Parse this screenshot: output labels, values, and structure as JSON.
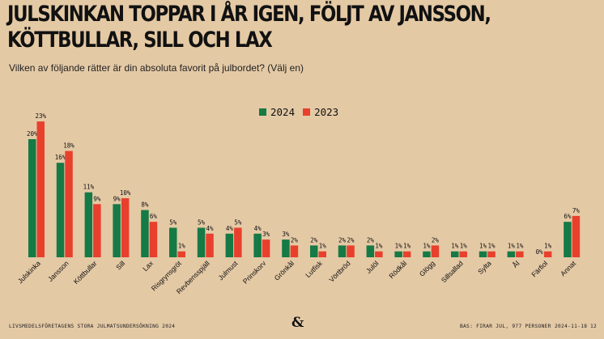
{
  "header": {
    "title_line1": "JULSKINKAN TOPPAR I ÅR IGEN, FÖLJT AV JANSSON,",
    "title_line2": "KÖTTBULLAR, SILL OCH LAX",
    "subtitle": "Vilken av följande rätter är din absoluta favorit på julbordet? (Välj en)"
  },
  "footer": {
    "source": "LIVSMEDELSFÖRETAGENS STORA JULMATSUNDERSÖKNING 2024",
    "base": "BAS: FIRAR JUL, 977 PERSONER",
    "date": "2024-11-18",
    "page": "12",
    "logo": "&"
  },
  "colors": {
    "s2024": "#157a45",
    "s2023": "#e8402d",
    "background": "#e4c9a5"
  },
  "chart_data": {
    "type": "bar",
    "title": "JULSKINKAN TOPPAR I ÅR IGEN, FÖLJT AV JANSSON, KÖTTBULLAR, SILL OCH LAX",
    "subtitle": "Vilken av följande rätter är din absoluta favorit på julbordet? (Välj en)",
    "categories": [
      "Julskinka",
      "Jansson",
      "Köttbullar",
      "Sill",
      "Lax",
      "Risgrynsgröt",
      "Revbensspjäll",
      "Julmust",
      "Prinskorv",
      "Grönkål",
      "Lutfisk",
      "Vörtbröd",
      "Julöl",
      "Rödkål",
      "Glögg",
      "Sillsallad",
      "Sylta",
      "Ål",
      "Färfiol",
      "Annat"
    ],
    "series": [
      {
        "name": "2024",
        "values": [
          20,
          16,
          11,
          9,
          8,
          5,
          5,
          4,
          4,
          3,
          2,
          2,
          2,
          1,
          1,
          1,
          1,
          1,
          0,
          6
        ],
        "labels": [
          "20%",
          "16%",
          "11%",
          "9%",
          "8%",
          "5%",
          "5%",
          "4%",
          "4%",
          "3%",
          "2%",
          "2%",
          "2%",
          "1%",
          "1%",
          "1%",
          "1%",
          "1%",
          "0%",
          "6%"
        ]
      },
      {
        "name": "2023",
        "values": [
          23,
          18,
          9,
          10,
          6,
          1,
          4,
          5,
          3,
          2,
          1,
          2,
          1,
          1,
          2,
          1,
          1,
          1,
          1,
          7
        ],
        "labels": [
          "23%",
          "18%",
          "9%",
          "10%",
          "6%",
          "1%",
          "4%",
          "5%",
          "3%",
          "2%",
          "1%",
          "2%",
          "1%",
          "1%",
          "2%",
          "1%",
          "1%",
          "1%",
          "1%",
          "7%"
        ]
      }
    ],
    "unit": "%",
    "ylim": [
      0,
      25
    ],
    "grid": false,
    "legend": "top-center"
  }
}
